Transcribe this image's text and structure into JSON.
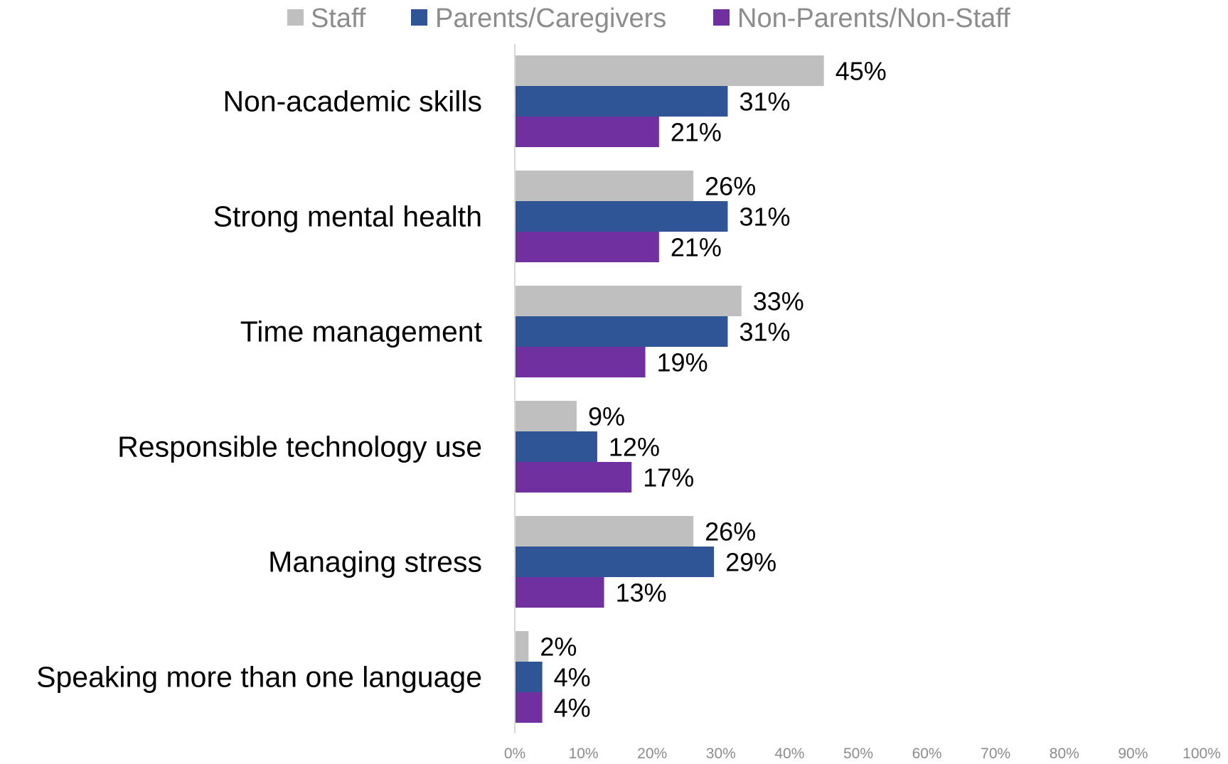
{
  "chart_data": {
    "type": "bar",
    "orientation": "horizontal",
    "categories": [
      "Non-academic skills",
      "Strong mental health",
      "Time management",
      "Responsible technology use",
      "Managing stress",
      "Speaking more than one language"
    ],
    "series": [
      {
        "name": "Staff",
        "color": "#bfbfbf",
        "values": [
          45,
          26,
          33,
          9,
          26,
          2
        ]
      },
      {
        "name": "Parents/Caregivers",
        "color": "#2f5597",
        "values": [
          31,
          31,
          31,
          12,
          29,
          4
        ]
      },
      {
        "name": "Non-Parents/Non-Staff",
        "color": "#7030a0",
        "values": [
          21,
          21,
          19,
          17,
          13,
          4
        ]
      }
    ],
    "data_labels": [
      [
        "45%",
        "31%",
        "21%"
      ],
      [
        "26%",
        "31%",
        "21%"
      ],
      [
        "33%",
        "31%",
        "19%"
      ],
      [
        "9%",
        "12%",
        "17%"
      ],
      [
        "26%",
        "29%",
        "13%"
      ],
      [
        "2%",
        "4%",
        "4%"
      ]
    ],
    "x_ticks": [
      "0%",
      "10%",
      "20%",
      "30%",
      "40%",
      "50%",
      "60%",
      "70%",
      "80%",
      "90%",
      "100%"
    ],
    "xlim": [
      0,
      100
    ],
    "title": "",
    "xlabel": "",
    "ylabel": "",
    "legend_position": "top",
    "grid": false
  }
}
